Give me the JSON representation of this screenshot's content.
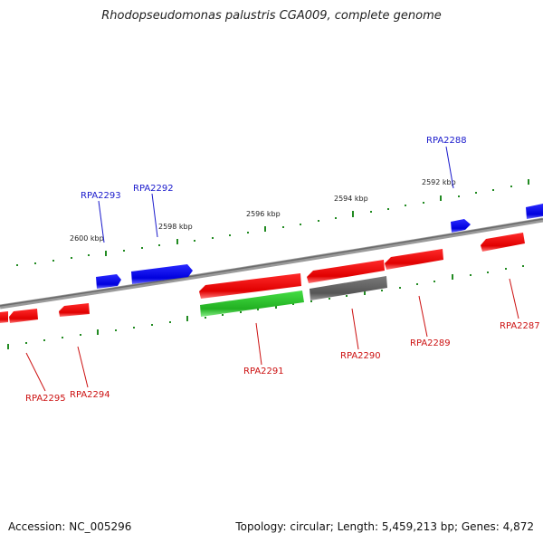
{
  "title": "Rhodopseudomonas palustris CGA009, complete genome",
  "footer": {
    "accession": "Accession: NC_005296",
    "topology": "Topology: circular; Length: 5,459,213 bp; Genes: 4,872"
  },
  "scale_labels": [
    "2600 kbp",
    "2598 kbp",
    "2596 kbp",
    "2594 kbp",
    "2592 kbp"
  ],
  "genes": [
    {
      "id": "RPA2288",
      "strand": "forward",
      "color": "blue"
    },
    {
      "id": "RPA2292",
      "strand": "forward",
      "color": "blue"
    },
    {
      "id": "RPA2293",
      "strand": "forward",
      "color": "blue"
    },
    {
      "id": "RPA2287",
      "strand": "reverse",
      "color": "red"
    },
    {
      "id": "RPA2289",
      "strand": "reverse",
      "color": "red"
    },
    {
      "id": "RPA2290",
      "strand": "reverse",
      "color": "gray"
    },
    {
      "id": "RPA2291",
      "strand": "reverse",
      "color": "green"
    },
    {
      "id": "RPA2294",
      "strand": "reverse",
      "color": "red"
    },
    {
      "id": "RPA2295",
      "strand": "reverse",
      "color": "red"
    }
  ],
  "colors": {
    "forward": "#0000ee",
    "reverse": "#ee0000",
    "gray": "#606060",
    "green": "#2ec02e",
    "backbone": "#808080",
    "ticks": "#228b22",
    "forward_label": "#1a1acc",
    "reverse_label": "#cc1111"
  }
}
